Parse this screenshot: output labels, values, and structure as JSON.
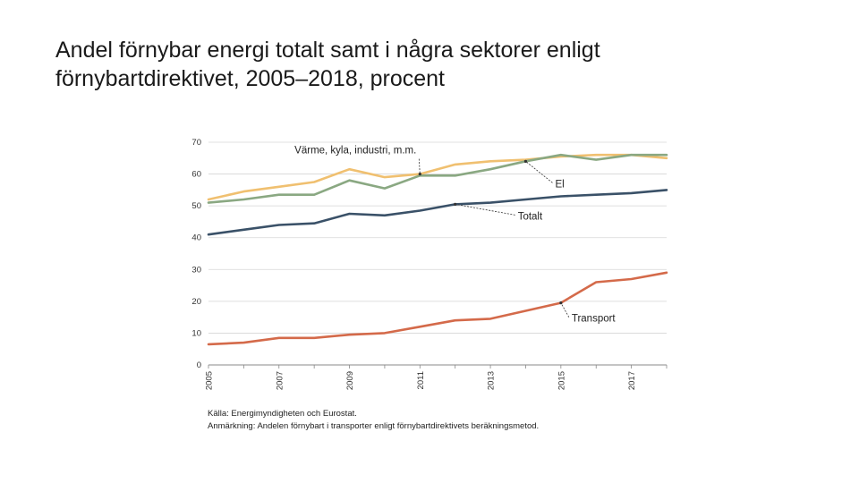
{
  "title": {
    "line1": "Andel förnybar energi totalt samt i några sektorer enligt",
    "line2": "förnybartdirektivet, 2005–2018, procent"
  },
  "chart_data": {
    "type": "line",
    "x": [
      2005,
      2006,
      2007,
      2008,
      2009,
      2010,
      2011,
      2012,
      2013,
      2014,
      2015,
      2016,
      2017,
      2018
    ],
    "xticks": [
      "2005",
      "2007",
      "2009",
      "2011",
      "2013",
      "2015",
      "2017"
    ],
    "ylim": [
      0,
      70
    ],
    "yticks": [
      "0",
      "10",
      "20",
      "30",
      "40",
      "50",
      "60",
      "70"
    ],
    "grid": true,
    "series": [
      {
        "name": "Värme, kyla, industri, m.m.",
        "color": "#f0c070",
        "values": [
          52,
          54.5,
          56,
          57.5,
          61.5,
          59,
          60,
          63,
          64,
          64.5,
          65.5,
          66,
          66,
          65
        ]
      },
      {
        "name": "El",
        "color": "#8aa882",
        "values": [
          51,
          52,
          53.5,
          53.5,
          58,
          55.5,
          59.5,
          59.5,
          61.5,
          64,
          66,
          64.5,
          66,
          66
        ]
      },
      {
        "name": "Totalt",
        "color": "#3a5168",
        "values": [
          41,
          42.5,
          44,
          44.5,
          47.5,
          47,
          48.5,
          50.5,
          51,
          52,
          53,
          53.5,
          54,
          55
        ]
      },
      {
        "name": "Transport",
        "color": "#d46a4a",
        "values": [
          6.5,
          7,
          8.5,
          8.5,
          9.5,
          10,
          12,
          14,
          14.5,
          17,
          19.5,
          26,
          27,
          29
        ]
      }
    ],
    "annotations": [
      {
        "label": "Värme, kyla, industri, m.m.",
        "series": 0,
        "point_year": 2011
      },
      {
        "label": "El",
        "series": 1,
        "point_year": 2014
      },
      {
        "label": "Totalt",
        "series": 2,
        "point_year": 2012
      },
      {
        "label": "Transport",
        "series": 3,
        "point_year": 2015
      }
    ],
    "source": "Källa: Energimyndigheten och Eurostat.",
    "note": "Anmärkning: Andelen förnybart i transporter enligt förnybartdirektivets beräkningsmetod."
  }
}
